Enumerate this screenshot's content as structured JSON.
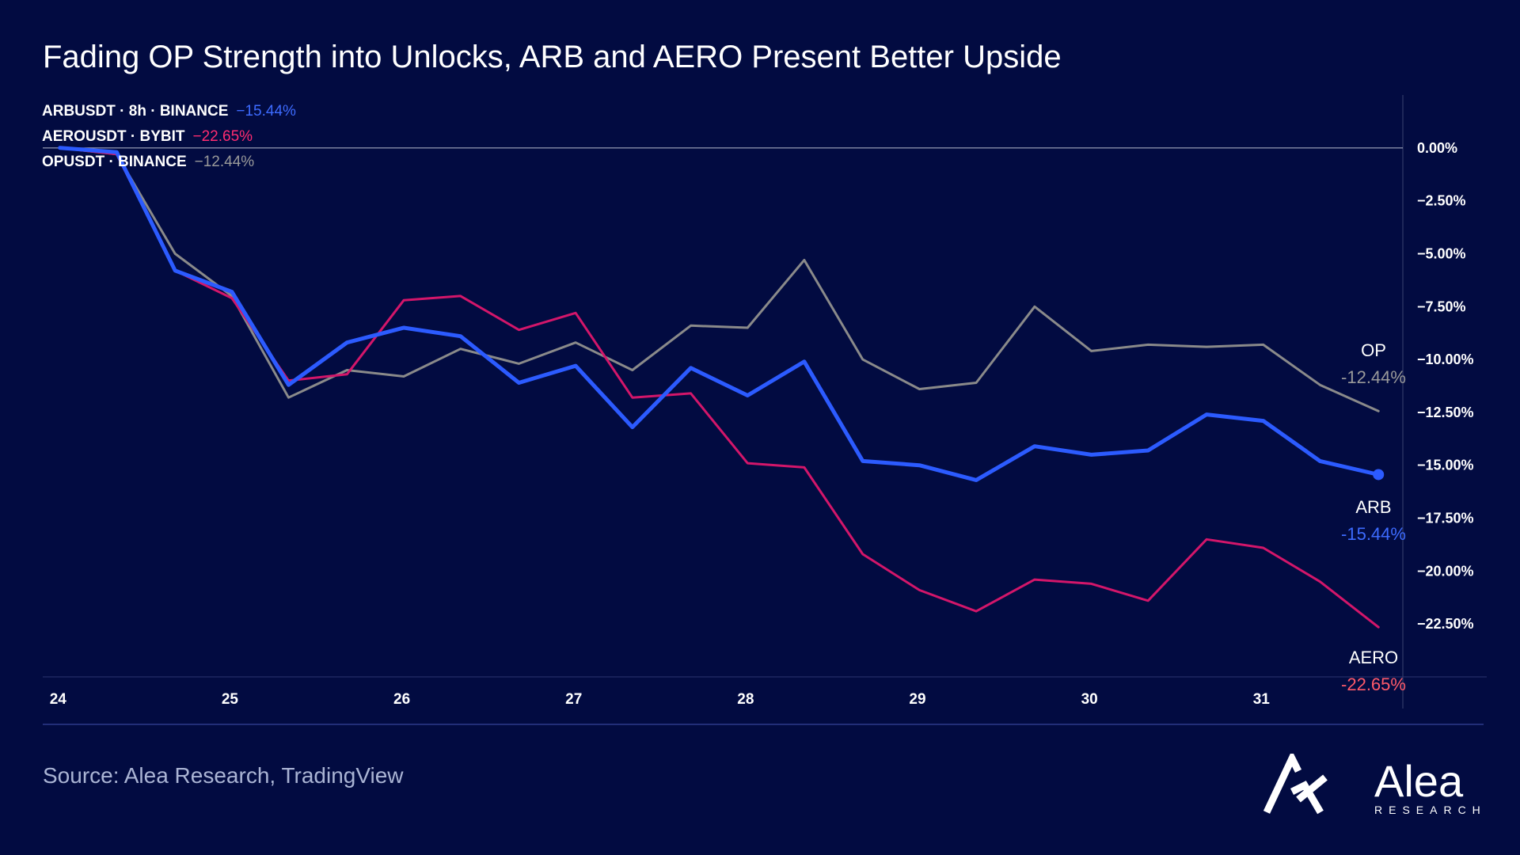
{
  "title": "Fading OP Strength into Unlocks, ARB and AERO Present Better Upside",
  "source": "Source: Alea Research, TradingView",
  "brand": {
    "name": "Alea",
    "sub": "RESEARCH"
  },
  "colors": {
    "background": "#020b41",
    "arb": "#2c5bff",
    "aero": "#d3166a",
    "op": "#8a8a8a",
    "aero_label": "#ff5a6a"
  },
  "legend": [
    {
      "symbol": "ARBUSDT · 8h · BINANCE",
      "value": "−15.44%",
      "color": "#3d6bff"
    },
    {
      "symbol": "AEROUSDT · BYBIT",
      "value": "−22.65%",
      "color": "#ff2c70"
    },
    {
      "symbol": "OPUSDT · BINANCE",
      "value": "−12.44%",
      "color": "#9a9a9a"
    }
  ],
  "end_labels": [
    {
      "name": "OP",
      "value": "-12.44%"
    },
    {
      "name": "ARB",
      "value": "-15.44%"
    },
    {
      "name": "AERO",
      "value": "-22.65%"
    }
  ],
  "chart_data": {
    "type": "line",
    "title": "Fading OP Strength into Unlocks, ARB and AERO Present Better Upside",
    "xlabel": "",
    "ylabel": "",
    "x": [
      24.0,
      24.33,
      24.67,
      25.0,
      25.33,
      25.67,
      26.0,
      26.33,
      26.67,
      27.0,
      27.33,
      27.67,
      28.0,
      28.33,
      28.67,
      29.0,
      29.33,
      29.67,
      30.0,
      30.33,
      30.67,
      31.0,
      31.33,
      31.67
    ],
    "xlim": [
      23.9,
      32.3
    ],
    "ylim": [
      -25,
      2.5
    ],
    "x_ticks": [
      24,
      25,
      26,
      27,
      28,
      29,
      30,
      31
    ],
    "x_tick_labels": [
      "24",
      "25",
      "26",
      "27",
      "28",
      "29",
      "30",
      "31"
    ],
    "y_ticks": [
      0,
      -2.5,
      -5,
      -7.5,
      -10,
      -12.5,
      -15,
      -17.5,
      -20,
      -22.5
    ],
    "y_tick_labels": [
      "0.00%",
      "−2.50%",
      "−5.00%",
      "−7.50%",
      "−10.00%",
      "−12.50%",
      "−15.00%",
      "−17.50%",
      "−20.00%",
      "−22.50%"
    ],
    "reference_line": 0,
    "series": [
      {
        "name": "OP",
        "color": "#8a8a8a",
        "values": [
          0.0,
          -0.3,
          -5.0,
          -7.0,
          -11.8,
          -10.5,
          -10.8,
          -9.5,
          -10.2,
          -9.2,
          -10.5,
          -8.4,
          -8.5,
          -5.3,
          -10.0,
          -11.4,
          -11.1,
          -7.5,
          -9.6,
          -9.3,
          -9.4,
          -9.3,
          -11.2,
          -12.44
        ]
      },
      {
        "name": "AERO",
        "color": "#d3166a",
        "values": [
          0.0,
          -0.3,
          -5.8,
          -7.1,
          -11.0,
          -10.7,
          -7.2,
          -7.0,
          -8.6,
          -7.8,
          -11.8,
          -11.6,
          -14.9,
          -15.1,
          -19.2,
          -20.9,
          -21.9,
          -20.4,
          -20.6,
          -21.4,
          -18.5,
          -18.9,
          -20.5,
          -22.65
        ]
      },
      {
        "name": "ARB",
        "color": "#2c5bff",
        "values": [
          0.0,
          -0.2,
          -5.8,
          -6.8,
          -11.2,
          -9.2,
          -8.5,
          -8.9,
          -11.1,
          -10.3,
          -13.2,
          -10.4,
          -11.7,
          -10.1,
          -14.8,
          -15.0,
          -15.7,
          -14.1,
          -14.5,
          -14.3,
          -12.6,
          -12.9,
          -14.8,
          -15.44
        ]
      }
    ]
  }
}
